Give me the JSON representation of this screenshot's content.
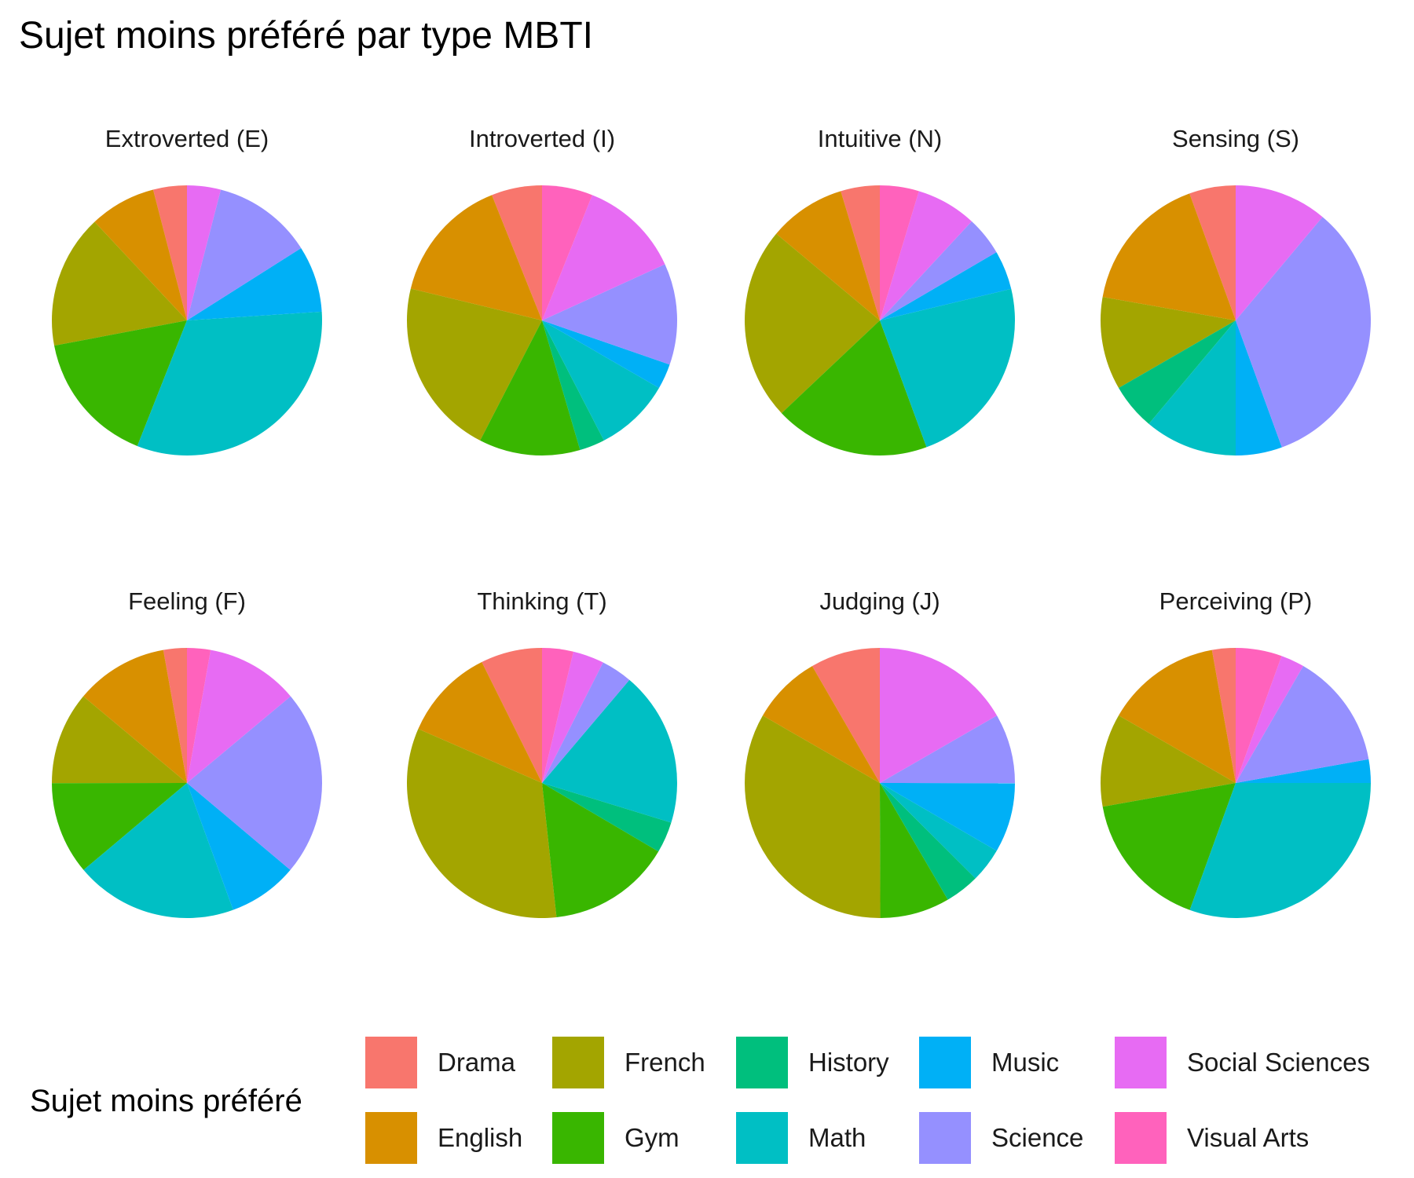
{
  "chart_title": "Sujet moins préféré par type MBTI",
  "chart_data": {
    "type": "pie",
    "title": "Sujet moins préféré par type MBTI",
    "legend_title": "Sujet moins préféré",
    "legend_position": "bottom",
    "categories": [
      "Drama",
      "English",
      "French",
      "Gym",
      "History",
      "Math",
      "Music",
      "Science",
      "Social Sciences",
      "Visual Arts"
    ],
    "colors": {
      "Drama": "#F8766D",
      "English": "#D89000",
      "French": "#A3A500",
      "Gym": "#39B600",
      "History": "#00BF7D",
      "Math": "#00BFC4",
      "Music": "#00B0F6",
      "Science": "#9590FF",
      "Social Sciences": "#E76BF3",
      "Visual Arts": "#FF62BC"
    },
    "panels": [
      {
        "label": "Extroverted (E)",
        "values": {
          "Drama": 3.6,
          "English": 7.1,
          "French": 14.3,
          "Gym": 14.3,
          "History": 0,
          "Math": 28.6,
          "Music": 7.1,
          "Science": 10.7,
          "Social Sciences": 3.6,
          "Visual Arts": 0
        }
      },
      {
        "label": "Introverted (I)",
        "values": {
          "Drama": 5.4,
          "English": 13.5,
          "French": 18.9,
          "Gym": 10.8,
          "History": 2.7,
          "Math": 8.1,
          "Music": 2.7,
          "Science": 10.8,
          "Social Sciences": 10.8,
          "Visual Arts": 5.4
        }
      },
      {
        "label": "Intuitive (N)",
        "values": {
          "Drama": 4.2,
          "English": 8.3,
          "French": 20.8,
          "Gym": 16.7,
          "History": 0,
          "Math": 20.8,
          "Music": 4.2,
          "Science": 4.2,
          "Social Sciences": 6.5,
          "Visual Arts": 4.2
        }
      },
      {
        "label": "Sensing (S)",
        "values": {
          "Drama": 5,
          "English": 15,
          "French": 10,
          "Gym": 0,
          "History": 5,
          "Math": 10,
          "Music": 5,
          "Science": 30,
          "Social Sciences": 10,
          "Visual Arts": 0
        }
      },
      {
        "label": "Feeling (F)",
        "values": {
          "Drama": 2.8,
          "English": 11.1,
          "French": 11.1,
          "Gym": 11.1,
          "History": 0,
          "Math": 19.4,
          "Music": 8.3,
          "Science": 22.2,
          "Social Sciences": 11.1,
          "Visual Arts": 2.8
        }
      },
      {
        "label": "Thinking (T)",
        "values": {
          "Drama": 7.1,
          "English": 10.7,
          "French": 32.1,
          "Gym": 14.3,
          "History": 3.6,
          "Math": 17.9,
          "Music": 0,
          "Science": 3.6,
          "Social Sciences": 3.6,
          "Visual Arts": 3.6
        }
      },
      {
        "label": "Judging (J)",
        "values": {
          "Drama": 7.7,
          "English": 7.7,
          "French": 30.8,
          "Gym": 7.7,
          "History": 3.8,
          "Math": 3.8,
          "Music": 7.7,
          "Science": 7.7,
          "Social Sciences": 15.4,
          "Visual Arts": 0
        }
      },
      {
        "label": "Perceiving (P)",
        "values": {
          "Drama": 2.6,
          "English": 12.8,
          "French": 10.3,
          "Gym": 15.4,
          "History": 0,
          "Math": 28.2,
          "Music": 2.6,
          "Science": 12.8,
          "Social Sciences": 2.6,
          "Visual Arts": 5.1
        }
      }
    ]
  }
}
